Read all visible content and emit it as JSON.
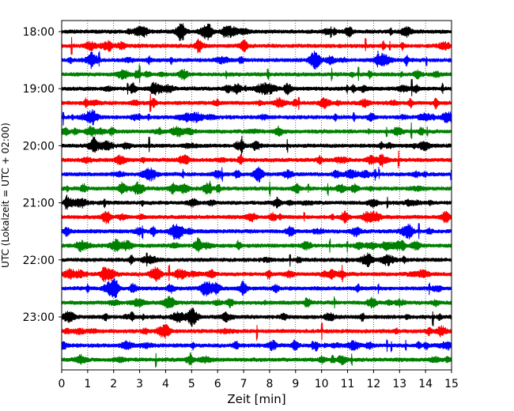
{
  "chart_data": {
    "type": "line",
    "title": "",
    "xlabel": "Zeit  [min]",
    "ylabel": "UTC (Lokalzeit = UTC + 02:00)",
    "xlim": [
      0,
      15
    ],
    "x_ticks": [
      "0",
      "1",
      "2",
      "3",
      "4",
      "5",
      "6",
      "7",
      "8",
      "9",
      "10",
      "11",
      "12",
      "13",
      "14",
      "15"
    ],
    "y_ticks": [
      "18:00",
      "19:00",
      "20:00",
      "21:00",
      "22:00",
      "23:00"
    ],
    "grid_x": true,
    "trace_colors": [
      "#000000",
      "#ff0000",
      "#0000ff",
      "#008000"
    ],
    "traces": [
      {
        "start": "18:00",
        "color": "#000000"
      },
      {
        "start": "18:15",
        "color": "#ff0000"
      },
      {
        "start": "18:30",
        "color": "#0000ff"
      },
      {
        "start": "18:45",
        "color": "#008000"
      },
      {
        "start": "19:00",
        "color": "#000000"
      },
      {
        "start": "19:15",
        "color": "#ff0000"
      },
      {
        "start": "19:30",
        "color": "#0000ff"
      },
      {
        "start": "19:45",
        "color": "#008000"
      },
      {
        "start": "20:00",
        "color": "#000000"
      },
      {
        "start": "20:15",
        "color": "#ff0000"
      },
      {
        "start": "20:30",
        "color": "#0000ff"
      },
      {
        "start": "20:45",
        "color": "#008000"
      },
      {
        "start": "21:00",
        "color": "#000000"
      },
      {
        "start": "21:15",
        "color": "#ff0000"
      },
      {
        "start": "21:30",
        "color": "#0000ff"
      },
      {
        "start": "21:45",
        "color": "#008000"
      },
      {
        "start": "22:00",
        "color": "#000000"
      },
      {
        "start": "22:15",
        "color": "#ff0000"
      },
      {
        "start": "22:30",
        "color": "#0000ff"
      },
      {
        "start": "22:45",
        "color": "#008000"
      },
      {
        "start": "23:00",
        "color": "#000000"
      },
      {
        "start": "23:15",
        "color": "#ff0000"
      },
      {
        "start": "23:30",
        "color": "#0000ff"
      },
      {
        "start": "23:45",
        "color": "#008000"
      }
    ]
  }
}
